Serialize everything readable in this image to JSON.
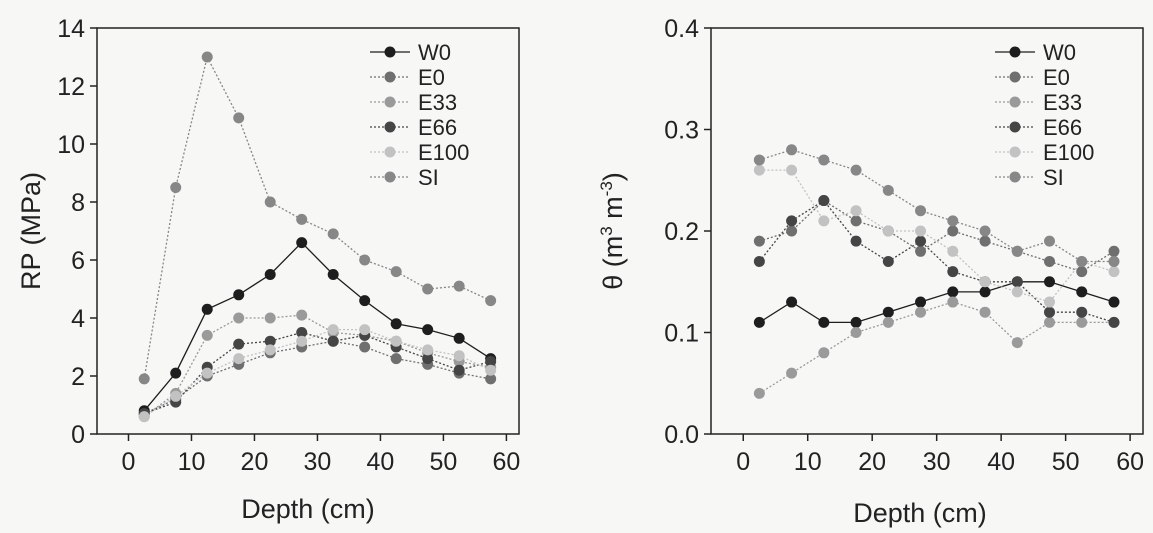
{
  "chart_data": [
    {
      "type": "line",
      "xlabel": "Depth (cm)",
      "ylabel": "RP (MPa)",
      "xlim": [
        -5,
        62
      ],
      "ylim": [
        0,
        14
      ],
      "xticks": [
        0,
        10,
        20,
        30,
        40,
        50,
        60
      ],
      "yticks": [
        0,
        2,
        4,
        6,
        8,
        10,
        12,
        14
      ],
      "legend": "top-right",
      "x": [
        2.5,
        7.5,
        12.5,
        17.5,
        22.5,
        27.5,
        32.5,
        37.5,
        42.5,
        47.5,
        52.5,
        57.5
      ],
      "series": [
        {
          "name": "W0",
          "color": "#1e1e1e",
          "dash": "",
          "values": [
            0.8,
            2.1,
            4.3,
            4.8,
            5.5,
            6.6,
            5.5,
            4.6,
            3.8,
            3.6,
            3.3,
            2.6
          ]
        },
        {
          "name": "E0",
          "color": "#6f6f6f",
          "dash": "2,2",
          "values": [
            0.7,
            1.2,
            2.0,
            2.4,
            2.8,
            3.0,
            3.2,
            3.0,
            2.6,
            2.4,
            2.1,
            1.9
          ]
        },
        {
          "name": "E33",
          "color": "#9a9a9a",
          "dash": "2,2",
          "values": [
            0.6,
            1.4,
            3.4,
            4.0,
            4.0,
            4.1,
            3.5,
            3.4,
            3.2,
            2.8,
            2.5,
            2.3
          ]
        },
        {
          "name": "E66",
          "color": "#454545",
          "dash": "2,2",
          "values": [
            0.7,
            1.1,
            2.3,
            3.1,
            3.2,
            3.5,
            3.2,
            3.4,
            3.0,
            2.6,
            2.2,
            2.5
          ]
        },
        {
          "name": "E100",
          "color": "#c2c2c2",
          "dash": "2,2",
          "values": [
            0.6,
            1.3,
            2.1,
            2.6,
            2.9,
            3.2,
            3.6,
            3.6,
            3.2,
            2.9,
            2.7,
            2.2
          ]
        },
        {
          "name": "SI",
          "color": "#878787",
          "dash": "2,2",
          "values": [
            1.9,
            8.5,
            13.0,
            10.9,
            8.0,
            7.4,
            6.9,
            6.0,
            5.6,
            5.0,
            5.1,
            4.6
          ]
        }
      ]
    },
    {
      "type": "line",
      "xlabel": "Depth (cm)",
      "ylabel_main": "θ (m",
      "ylabel_sup1": "3",
      "ylabel_mid": " m",
      "ylabel_sup2": "-3",
      "ylabel_end": ")",
      "xlim": [
        -5,
        62
      ],
      "ylim": [
        0.0,
        0.4
      ],
      "xticks": [
        0,
        10,
        20,
        30,
        40,
        50,
        60
      ],
      "yticks": [
        "0.0",
        "0.1",
        "0.2",
        "0.3",
        "0.4"
      ],
      "legend": "top-right",
      "x": [
        2.5,
        7.5,
        12.5,
        17.5,
        22.5,
        27.5,
        32.5,
        37.5,
        42.5,
        47.5,
        52.5,
        57.5
      ],
      "series": [
        {
          "name": "W0",
          "color": "#1e1e1e",
          "dash": "",
          "values": [
            0.11,
            0.13,
            0.11,
            0.11,
            0.12,
            0.13,
            0.14,
            0.14,
            0.15,
            0.15,
            0.14,
            0.13
          ]
        },
        {
          "name": "E0",
          "color": "#6f6f6f",
          "dash": "2,2",
          "values": [
            0.19,
            0.2,
            0.23,
            0.21,
            0.2,
            0.18,
            0.2,
            0.19,
            0.18,
            0.17,
            0.16,
            0.18
          ]
        },
        {
          "name": "E33",
          "color": "#9a9a9a",
          "dash": "2,2",
          "values": [
            0.04,
            0.06,
            0.08,
            0.1,
            0.11,
            0.12,
            0.13,
            0.12,
            0.09,
            0.11,
            0.11,
            0.11
          ]
        },
        {
          "name": "E66",
          "color": "#454545",
          "dash": "2,2",
          "values": [
            0.17,
            0.21,
            0.23,
            0.19,
            0.17,
            0.19,
            0.16,
            0.15,
            0.15,
            0.12,
            0.12,
            0.11
          ]
        },
        {
          "name": "E100",
          "color": "#c2c2c2",
          "dash": "2,2",
          "values": [
            0.26,
            0.26,
            0.21,
            0.22,
            0.2,
            0.2,
            0.18,
            0.15,
            0.14,
            0.13,
            0.17,
            0.16
          ]
        },
        {
          "name": "SI",
          "color": "#878787",
          "dash": "2,2",
          "values": [
            0.27,
            0.28,
            0.27,
            0.26,
            0.24,
            0.22,
            0.21,
            0.2,
            0.18,
            0.19,
            0.17,
            0.17
          ]
        }
      ]
    }
  ]
}
